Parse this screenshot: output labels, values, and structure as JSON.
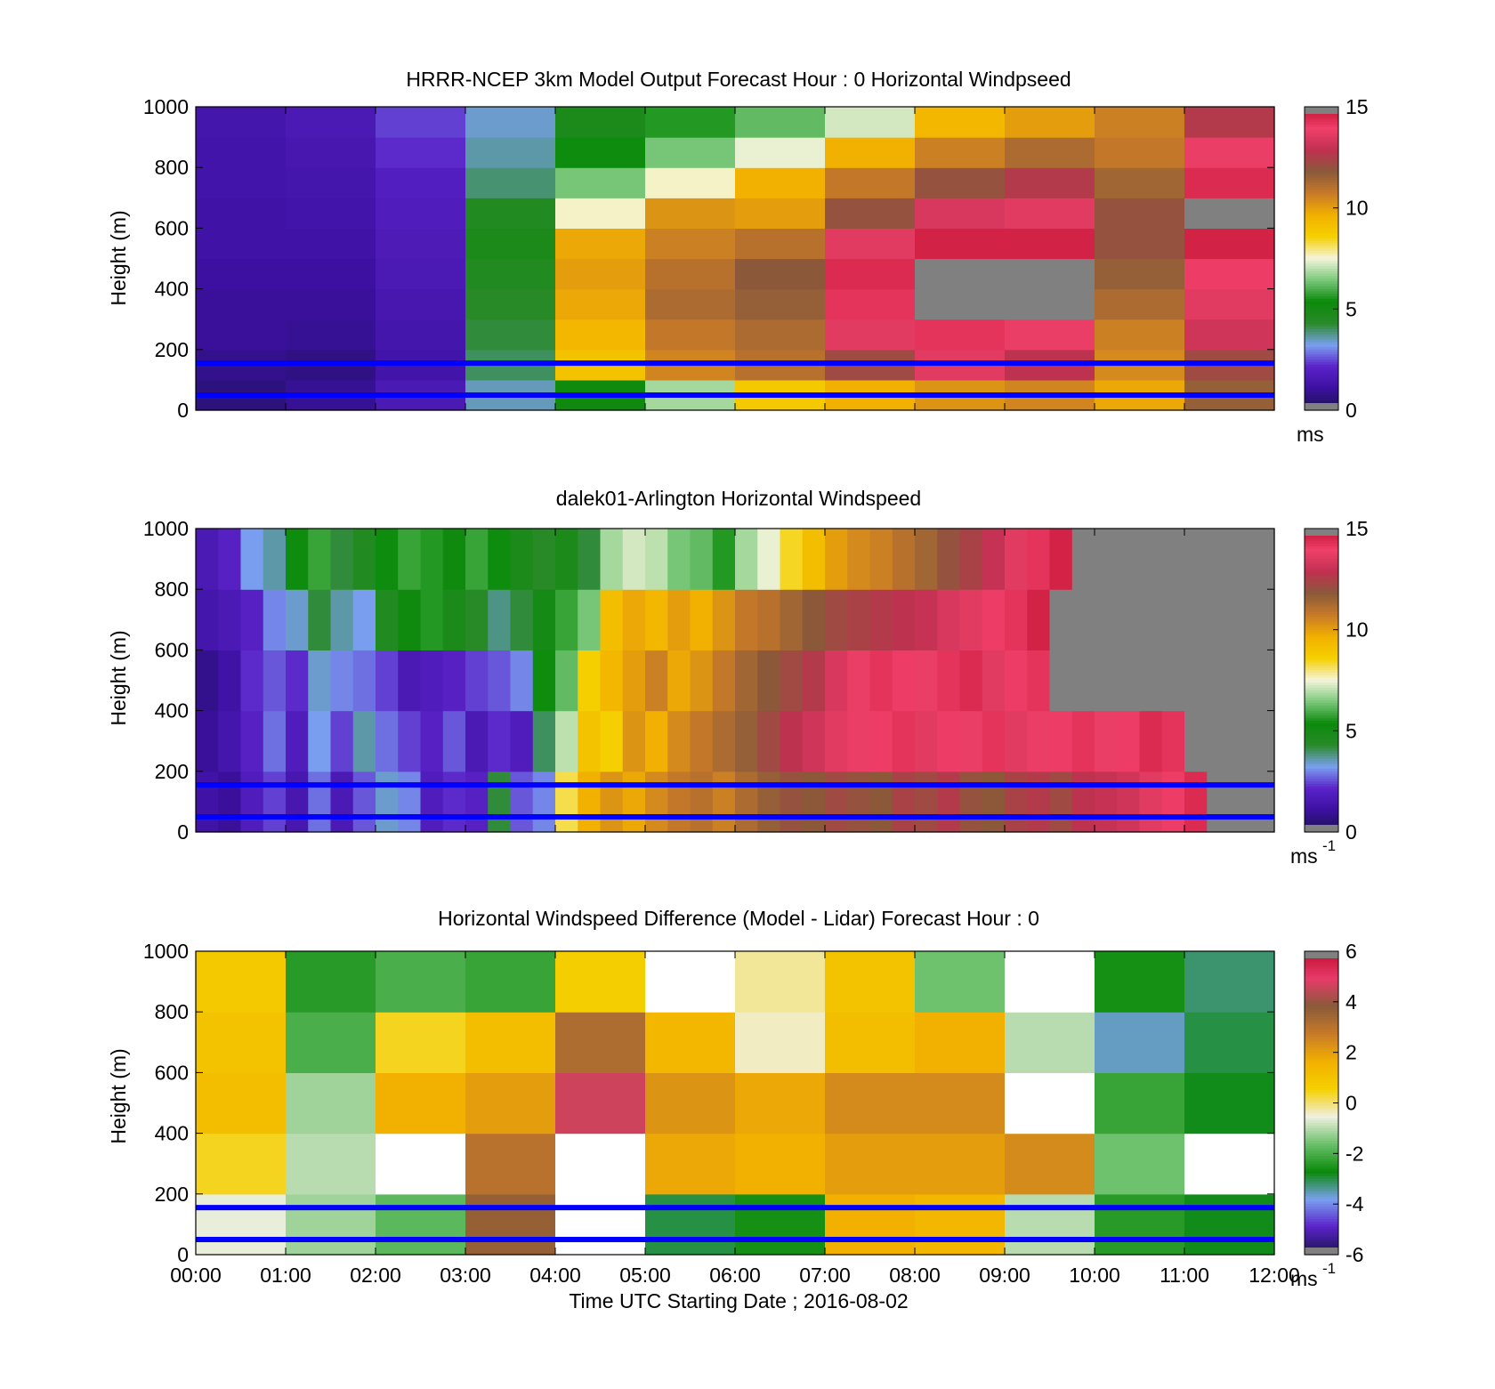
{
  "figure": {
    "xlabel": "Time UTC  Starting Date ; 2016-08-02",
    "x_ticks": [
      "00:00",
      "01:00",
      "02:00",
      "03:00",
      "04:00",
      "05:00",
      "06:00",
      "07:00",
      "08:00",
      "09:00",
      "10:00",
      "11:00",
      "12:00"
    ],
    "y_ticks": [
      "0",
      "200",
      "400",
      "600",
      "800",
      "1000"
    ],
    "ylabel": "Height (m)"
  },
  "colors": {
    "speed_scale": [
      "#1a1450",
      "#3c10a0",
      "#5a22c8",
      "#7aa0f0",
      "#2a8a2a",
      "#0a8a0a",
      "#7ac87a",
      "#f5f5dc",
      "#f5d000",
      "#f2b000",
      "#c87a28",
      "#8a5a3a",
      "#c03050",
      "#f0406a",
      "#c01030",
      "#808080"
    ],
    "diff_scale": [
      "#404040",
      "#1a1450",
      "#5a22c8",
      "#7aa0f0",
      "#0a8a0a",
      "#6ac06a",
      "#f0f0e0",
      "#f5d000",
      "#f2b000",
      "#c87a28",
      "#8a5a3a",
      "#e83a6a",
      "#c01030",
      "#808080"
    ],
    "guide_line": "#0000ff"
  },
  "chart_data": [
    {
      "type": "heatmap",
      "title": "HRRR-NCEP 3km Model Output   Forecast Hour : 0 Horizontal Windpseed",
      "xlabel": "",
      "ylabel": "Height (m)",
      "xlim": [
        0,
        12
      ],
      "ylim": [
        0,
        1000
      ],
      "colorbar": {
        "min": 0,
        "max": 15,
        "ticks": [
          "0",
          "5",
          "10",
          "15"
        ],
        "unit": "ms"
      },
      "guide_lines_m": [
        50,
        155
      ],
      "hours_center": [
        0.5,
        1.5,
        2.5,
        3.5,
        4.5,
        5.5,
        6.5,
        7.5,
        8.5,
        9.5,
        10.5,
        11.5
      ],
      "heights_m": [
        50,
        150,
        250,
        350,
        450,
        550,
        650,
        750,
        850,
        950
      ],
      "values": [
        [
          0.6,
          0.9,
          1.6,
          3.5,
          5.2,
          6.8,
          8.8,
          9.6,
          10.2,
          10.5,
          9.8,
          11.6
        ],
        [
          0.8,
          0.7,
          1.3,
          4.0,
          9.0,
          10.5,
          11.0,
          12.2,
          13.6,
          12.8,
          10.4,
          12.2
        ],
        [
          1.0,
          0.9,
          1.4,
          4.2,
          9.4,
          10.8,
          11.2,
          13.6,
          14.2,
          13.8,
          10.6,
          13.2
        ],
        [
          1.0,
          1.0,
          1.5,
          4.4,
          9.8,
          11.2,
          11.6,
          14.2,
          16.0,
          16.0,
          11.2,
          13.6
        ],
        [
          1.1,
          1.1,
          1.6,
          4.6,
          10.0,
          11.0,
          11.8,
          14.4,
          16.0,
          16.0,
          11.6,
          14.0
        ],
        [
          1.2,
          1.2,
          1.7,
          4.8,
          9.8,
          10.6,
          11.0,
          13.6,
          14.6,
          14.6,
          12.0,
          14.6
        ],
        [
          1.2,
          1.3,
          1.8,
          4.6,
          7.6,
          10.2,
          10.0,
          12.0,
          13.4,
          13.6,
          12.0,
          16.0
        ],
        [
          1.3,
          1.4,
          1.9,
          3.9,
          6.4,
          7.6,
          9.6,
          10.8,
          12.0,
          12.6,
          11.4,
          14.4
        ],
        [
          1.3,
          1.5,
          2.2,
          3.6,
          5.4,
          6.4,
          7.4,
          9.6,
          10.6,
          11.2,
          10.8,
          13.8
        ],
        [
          1.4,
          1.6,
          2.4,
          3.4,
          4.8,
          5.6,
          6.2,
          7.2,
          9.4,
          10.0,
          10.6,
          12.6
        ]
      ]
    },
    {
      "type": "heatmap",
      "title": "dalek01-Arlington  Horizontal Windspeed",
      "xlabel": "",
      "ylabel": "Height (m)",
      "xlim": [
        0,
        12
      ],
      "ylim": [
        0,
        1000
      ],
      "colorbar": {
        "min": 0,
        "max": 15,
        "ticks": [
          "0",
          "5",
          "10",
          "15"
        ],
        "unit": "ms",
        "unit_exp": "-1"
      },
      "guide_lines_m": [
        50,
        155
      ],
      "hours_center": [
        0.125,
        0.375,
        0.625,
        0.875,
        1.125,
        1.375,
        1.625,
        1.875,
        2.125,
        2.375,
        2.625,
        2.875,
        3.125,
        3.375,
        3.625,
        3.875,
        4.125,
        4.375,
        4.625,
        4.875,
        5.125,
        5.375,
        5.625,
        5.875,
        6.125,
        6.375,
        6.625,
        6.875,
        7.125,
        7.375,
        7.625,
        7.875,
        8.125,
        8.375,
        8.625,
        8.875,
        9.125,
        9.375,
        9.625,
        9.875,
        10.125,
        10.375,
        10.625,
        10.875,
        11.125,
        11.375,
        11.625,
        11.875
      ],
      "heights_m": [
        100,
        300,
        500,
        700,
        900
      ],
      "values": [
        [
          1.2,
          1.0,
          1.8,
          2.4,
          1.5,
          2.8,
          1.6,
          2.6,
          3.4,
          3.0,
          1.8,
          2.2,
          2.0,
          4.2,
          2.6,
          3.0,
          8.2,
          9.6,
          10.2,
          9.8,
          10.4,
          10.8,
          11.0,
          10.6,
          11.2,
          11.6,
          12.0,
          11.8,
          12.2,
          12.0,
          11.8,
          12.4,
          12.2,
          12.6,
          12.0,
          11.8,
          12.4,
          12.6,
          12.2,
          12.8,
          13.0,
          13.2,
          13.6,
          14.0,
          14.4,
          16.0,
          16.0,
          16.0
        ],
        [
          1.0,
          1.4,
          2.0,
          2.8,
          1.8,
          3.2,
          2.4,
          3.6,
          2.8,
          2.4,
          2.0,
          2.6,
          1.6,
          2.2,
          1.8,
          4.0,
          7.0,
          9.0,
          8.6,
          10.2,
          9.6,
          10.4,
          10.8,
          11.2,
          11.6,
          12.2,
          12.8,
          13.2,
          13.6,
          13.8,
          14.0,
          14.2,
          13.6,
          14.0,
          13.8,
          14.2,
          13.6,
          13.8,
          14.0,
          14.2,
          13.8,
          14.0,
          14.4,
          14.2,
          16.0,
          16.0,
          16.0,
          16.0
        ],
        [
          0.8,
          1.2,
          2.2,
          2.6,
          2.2,
          3.4,
          3.0,
          2.8,
          2.4,
          1.6,
          1.8,
          2.0,
          2.4,
          2.6,
          3.0,
          5.4,
          6.2,
          8.6,
          9.4,
          10.0,
          10.6,
          9.8,
          10.2,
          10.8,
          11.4,
          11.8,
          12.2,
          12.6,
          13.4,
          13.8,
          14.2,
          14.0,
          13.8,
          14.2,
          14.4,
          13.6,
          14.0,
          14.2,
          16.0,
          16.0,
          16.0,
          16.0,
          16.0,
          16.0,
          16.0,
          16.0,
          16.0,
          16.0
        ],
        [
          1.4,
          1.6,
          2.0,
          3.0,
          3.4,
          4.2,
          3.6,
          3.2,
          4.6,
          5.2,
          5.6,
          4.8,
          4.4,
          3.8,
          4.2,
          5.0,
          5.8,
          6.4,
          9.2,
          9.8,
          9.4,
          10.0,
          9.6,
          10.2,
          10.8,
          11.0,
          11.4,
          11.8,
          12.2,
          12.4,
          12.6,
          12.8,
          13.0,
          13.4,
          13.6,
          14.0,
          14.2,
          14.6,
          16.0,
          16.0,
          16.0,
          16.0,
          16.0,
          16.0,
          16.0,
          16.0,
          16.0,
          16.0
        ],
        [
          1.6,
          2.0,
          3.2,
          3.6,
          5.4,
          5.8,
          4.2,
          4.6,
          5.4,
          5.8,
          5.6,
          5.2,
          5.8,
          5.4,
          4.8,
          4.4,
          4.8,
          4.2,
          6.8,
          7.2,
          7.0,
          6.4,
          6.2,
          5.6,
          6.8,
          7.4,
          8.4,
          9.2,
          10.0,
          10.4,
          10.6,
          11.0,
          11.4,
          12.0,
          12.4,
          13.0,
          13.6,
          14.2,
          14.6,
          16.0,
          16.0,
          16.0,
          16.0,
          16.0,
          16.0,
          16.0,
          16.0,
          16.0
        ]
      ]
    },
    {
      "type": "heatmap",
      "title": "Horizontal Windspeed Difference (Model - Lidar) Forecast Hour : 0",
      "xlabel": "Time UTC  Starting Date ; 2016-08-02",
      "ylabel": "Height (m)",
      "xlim": [
        0,
        12
      ],
      "ylim": [
        0,
        1000
      ],
      "colorbar": {
        "min": -6,
        "max": 6,
        "ticks": [
          "6",
          "4",
          "2",
          "0",
          "-2",
          "-4",
          "-6"
        ],
        "unit": "ms",
        "unit_exp": "-1"
      },
      "guide_lines_m": [
        50,
        155
      ],
      "hours_center": [
        0.5,
        1.5,
        2.5,
        3.5,
        4.5,
        5.5,
        6.5,
        7.5,
        8.5,
        9.5,
        10.5,
        11.5
      ],
      "heights_m": [
        100,
        300,
        500,
        700,
        900
      ],
      "values": [
        [
          -0.6,
          -1.2,
          -1.8,
          3.6,
          null,
          -3.0,
          -2.6,
          1.6,
          1.4,
          -1.0,
          -2.4,
          -2.8
        ],
        [
          0.4,
          -1.0,
          null,
          3.0,
          null,
          1.8,
          1.6,
          2.0,
          2.0,
          2.4,
          -1.6,
          null
        ],
        [
          1.2,
          -1.2,
          1.6,
          2.0,
          4.6,
          2.2,
          1.8,
          2.4,
          2.4,
          null,
          -2.2,
          -2.8
        ],
        [
          1.0,
          -2.0,
          0.4,
          1.2,
          3.2,
          1.4,
          -0.4,
          1.2,
          1.6,
          -1.0,
          -3.6,
          -3.0
        ],
        [
          0.8,
          -2.4,
          -2.0,
          -2.2,
          0.6,
          null,
          -0.2,
          1.0,
          -1.6,
          null,
          -2.6,
          -3.2
        ]
      ]
    }
  ]
}
